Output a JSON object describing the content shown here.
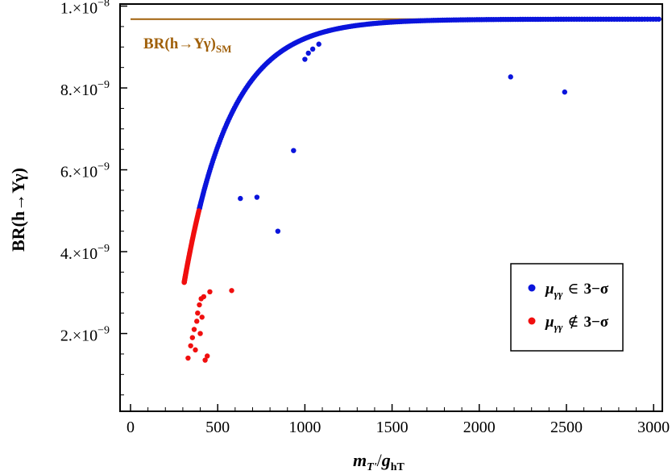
{
  "chart_data": {
    "type": "scatter",
    "xlabel_main": "m",
    "xlabel_sub": "T'",
    "xlabel_sep": "/",
    "xlabel_main2": "g",
    "xlabel_sub2": "hT",
    "ylabel": "BR(h→Υγ)",
    "xlim": [
      -60,
      3050
    ],
    "ylim": [
      0.1,
      10.05
    ],
    "y_unit_exponent": -9,
    "x_ticks": [
      0,
      500,
      1000,
      1500,
      2000,
      2500,
      3000
    ],
    "x_tick_labels": [
      "0",
      "500",
      "1000",
      "1500",
      "2000",
      "2500",
      "3000"
    ],
    "y_ticks": [
      2,
      4,
      6,
      8,
      10
    ],
    "y_tick_labels": [
      {
        "mantissa": "2.",
        "times": "×",
        "base": "10",
        "exp": "−9"
      },
      {
        "mantissa": "4.",
        "times": "×",
        "base": "10",
        "exp": "−9"
      },
      {
        "mantissa": "6.",
        "times": "×",
        "base": "10",
        "exp": "−9"
      },
      {
        "mantissa": "8.",
        "times": "×",
        "base": "10",
        "exp": "−9"
      },
      {
        "mantissa": "1.",
        "times": "×",
        "base": "10",
        "exp": "−8"
      }
    ],
    "reference_line": {
      "y": 9.68,
      "x_range": [
        0,
        3050
      ],
      "label_main": "BR(h→Υγ)",
      "label_sub": "SM",
      "color": "#a0600a"
    },
    "series": [
      {
        "name": "in-3sigma",
        "color": "#0a14dc",
        "curve": {
          "x_start": 395,
          "x_end": 3030,
          "a": 9.68,
          "b": 6.43,
          "x0": 308,
          "tau": 265
        },
        "curve_point_count": 260,
        "outliers": [
          {
            "x": 630,
            "y": 5.3
          },
          {
            "x": 725,
            "y": 5.33
          },
          {
            "x": 845,
            "y": 4.5
          },
          {
            "x": 935,
            "y": 6.47
          },
          {
            "x": 1000,
            "y": 8.7
          },
          {
            "x": 1020,
            "y": 8.85
          },
          {
            "x": 1045,
            "y": 8.95
          },
          {
            "x": 1080,
            "y": 9.07
          },
          {
            "x": 2180,
            "y": 8.27
          },
          {
            "x": 2490,
            "y": 7.9
          }
        ]
      },
      {
        "name": "out-3sigma",
        "color": "#f00f0f",
        "curve": {
          "x_start": 308,
          "x_end": 392,
          "a": 9.68,
          "b": 6.43,
          "x0": 308,
          "tau": 265
        },
        "curve_point_count": 60,
        "outliers": [
          {
            "x": 330,
            "y": 1.4
          },
          {
            "x": 345,
            "y": 1.7
          },
          {
            "x": 355,
            "y": 1.9
          },
          {
            "x": 365,
            "y": 2.1
          },
          {
            "x": 372,
            "y": 1.6
          },
          {
            "x": 380,
            "y": 2.3
          },
          {
            "x": 385,
            "y": 2.5
          },
          {
            "x": 395,
            "y": 2.7
          },
          {
            "x": 400,
            "y": 2.0
          },
          {
            "x": 405,
            "y": 2.85
          },
          {
            "x": 410,
            "y": 2.4
          },
          {
            "x": 420,
            "y": 2.9
          },
          {
            "x": 428,
            "y": 1.35
          },
          {
            "x": 440,
            "y": 1.45
          },
          {
            "x": 455,
            "y": 3.02
          },
          {
            "x": 580,
            "y": 3.05
          }
        ]
      }
    ],
    "legend": {
      "placement": "right",
      "entries": [
        {
          "symbol": "μ",
          "sub": "γγ",
          "relation": "∈",
          "text": "3−σ",
          "color": "#0a14dc"
        },
        {
          "symbol": "μ",
          "sub": "γγ",
          "relation": "∉",
          "text": "3−σ",
          "color": "#f00f0f"
        }
      ]
    }
  }
}
